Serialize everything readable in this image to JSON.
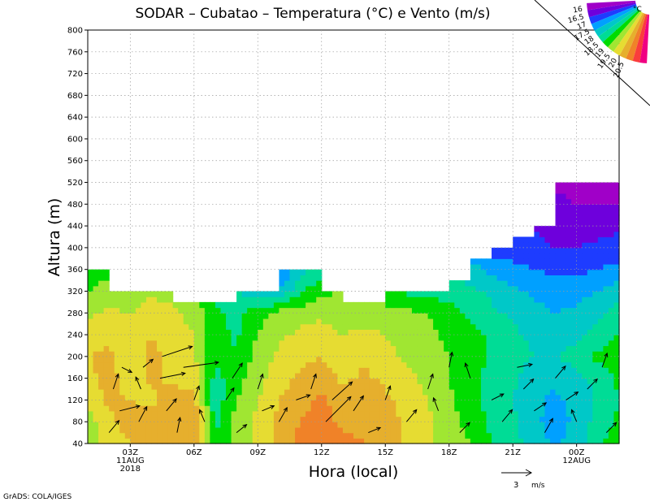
{
  "chart_data": {
    "type": "heatmap",
    "title": "SODAR  –  Cubatao  –  Temperatura (°C) e Vento (m/s)",
    "xlabel": "Hora (local)",
    "ylabel": "Altura (m)",
    "xlim": [
      0,
      25
    ],
    "ylim": [
      40,
      800
    ],
    "y_ticks": [
      40,
      80,
      120,
      160,
      200,
      240,
      280,
      320,
      360,
      400,
      440,
      480,
      520,
      560,
      600,
      640,
      680,
      720,
      760,
      800
    ],
    "x_ticks": [
      {
        "hour": 2,
        "lines": [
          "03Z",
          "11AUG",
          "2018"
        ]
      },
      {
        "hour": 5,
        "lines": [
          "06Z"
        ]
      },
      {
        "hour": 8,
        "lines": [
          "09Z"
        ]
      },
      {
        "hour": 11,
        "lines": [
          "12Z"
        ]
      },
      {
        "hour": 14,
        "lines": [
          "15Z"
        ]
      },
      {
        "hour": 17,
        "lines": [
          "18Z"
        ]
      },
      {
        "hour": 20,
        "lines": [
          "21Z"
        ]
      },
      {
        "hour": 23,
        "lines": [
          "00Z",
          "12AUG"
        ]
      }
    ],
    "grid": true,
    "legend": {
      "placement": "top-right",
      "unit": "°C",
      "levels": [
        "16",
        "16.5",
        "17",
        "17.5",
        "18",
        "18.5",
        "19",
        "19.5",
        "20",
        "20.5"
      ],
      "colors": [
        "#a000c8",
        "#6e00dc",
        "#1e3cff",
        "#00a0ff",
        "#00c8c8",
        "#00dc96",
        "#00dc00",
        "#a0e632",
        "#e6dc32",
        "#e6af2d",
        "#f08228",
        "#fa3c3c",
        "#f00082"
      ]
    },
    "data_top_by_hour": [
      360,
      320,
      320,
      320,
      300,
      300,
      300,
      320,
      320,
      360,
      360,
      320,
      300,
      300,
      320,
      320,
      320,
      340,
      380,
      400,
      420,
      440,
      520,
      520,
      520,
      480
    ],
    "temperature_grid": {
      "hours": [
        0,
        1,
        2,
        3,
        4,
        5,
        6,
        7,
        8,
        9,
        10,
        11,
        12,
        13,
        14,
        15,
        16,
        17,
        18,
        19,
        20,
        21,
        22,
        23,
        24,
        25
      ],
      "heights": [
        40,
        80,
        120,
        160,
        200,
        240,
        280,
        320,
        360,
        400,
        440,
        480,
        520
      ],
      "values": [
        [
          19.0,
          19.8,
          20.0,
          20.3,
          20.4,
          20.5,
          18.6,
          19.2,
          19.6,
          20.2,
          20.7,
          21.0,
          20.7,
          20.5,
          20.3,
          19.9,
          19.6,
          19.3,
          19.0,
          18.5,
          18.2,
          17.8,
          17.4,
          17.8,
          18.4,
          18.8
        ],
        [
          19.3,
          19.9,
          20.2,
          20.2,
          20.3,
          20.4,
          18.3,
          19.2,
          19.6,
          20.1,
          20.5,
          20.8,
          20.3,
          20.4,
          20.2,
          19.9,
          19.6,
          19.2,
          18.8,
          18.4,
          18.1,
          17.6,
          17.3,
          17.6,
          18.2,
          18.6
        ],
        [
          19.6,
          20.1,
          20.0,
          19.9,
          20.2,
          20.2,
          18.2,
          19.0,
          19.5,
          20.0,
          20.3,
          20.6,
          20.2,
          20.3,
          20.1,
          19.8,
          19.5,
          19.1,
          18.7,
          18.3,
          18.0,
          17.6,
          17.4,
          17.6,
          18.1,
          18.5
        ],
        [
          19.8,
          20.3,
          19.6,
          20.1,
          19.9,
          19.8,
          18.3,
          18.8,
          19.3,
          19.8,
          20.1,
          20.3,
          19.9,
          20.1,
          19.9,
          19.6,
          19.4,
          19.0,
          18.7,
          18.3,
          18.1,
          17.7,
          17.6,
          17.8,
          18.2,
          18.6
        ],
        [
          20.0,
          20.1,
          19.5,
          20.2,
          19.8,
          19.6,
          18.6,
          18.6,
          19.2,
          19.6,
          19.9,
          20.0,
          19.7,
          19.9,
          19.7,
          19.4,
          19.3,
          19.0,
          18.8,
          18.4,
          18.2,
          18.0,
          18.0,
          18.2,
          18.6,
          18.9
        ],
        [
          19.7,
          19.9,
          19.6,
          20.0,
          19.7,
          19.5,
          18.7,
          18.4,
          19.0,
          19.4,
          19.6,
          19.7,
          19.5,
          19.6,
          19.5,
          19.3,
          19.1,
          18.9,
          18.7,
          18.4,
          18.1,
          17.9,
          17.8,
          17.9,
          18.2,
          18.5
        ],
        [
          19.4,
          19.6,
          19.5,
          19.8,
          19.6,
          19.3,
          18.6,
          18.3,
          18.8,
          19.2,
          19.3,
          19.4,
          19.2,
          19.3,
          19.2,
          19.1,
          19.0,
          18.7,
          18.4,
          18.1,
          17.9,
          17.7,
          17.5,
          17.6,
          17.9,
          18.2
        ],
        [
          19.0,
          19.2,
          19.2,
          19.4,
          19.3,
          19.0,
          18.3,
          18.0,
          17.6,
          17.5,
          18.4,
          18.9,
          19.0,
          19.0,
          18.6,
          18.4,
          18.3,
          18.3,
          18.1,
          17.9,
          17.6,
          17.4,
          17.3,
          17.3,
          17.5,
          17.8
        ],
        [
          18.8,
          18.8,
          18.8,
          18.8,
          18.8,
          18.8,
          18.2,
          17.9,
          17.2,
          16.8,
          17.8,
          18.3,
          18.3,
          18.3,
          18.3,
          18.3,
          18.3,
          18.3,
          17.7,
          17.4,
          17.2,
          17.0,
          16.9,
          16.9,
          17.0,
          17.2
        ],
        [
          18.8,
          18.8,
          18.8,
          18.8,
          18.8,
          18.8,
          18.8,
          18.8,
          18.8,
          18.8,
          18.8,
          18.8,
          18.8,
          18.8,
          18.8,
          18.8,
          18.8,
          18.8,
          17.3,
          16.6,
          16.7,
          16.6,
          16.5,
          16.5,
          16.6,
          16.7
        ],
        [
          18.8,
          18.8,
          18.8,
          18.8,
          18.8,
          18.8,
          18.8,
          18.8,
          18.8,
          18.8,
          18.8,
          18.8,
          18.8,
          18.8,
          18.8,
          18.8,
          18.8,
          18.8,
          17.3,
          16.5,
          16.4,
          16.5,
          16.3,
          16.2,
          16.3,
          16.4
        ],
        [
          18.8,
          18.8,
          18.8,
          18.8,
          18.8,
          18.8,
          18.8,
          18.8,
          18.8,
          18.8,
          18.8,
          18.8,
          18.8,
          18.8,
          18.8,
          18.8,
          18.8,
          18.8,
          17.3,
          16.5,
          16.2,
          16.2,
          16.1,
          16.0,
          16.0,
          16.0
        ],
        [
          18.8,
          18.8,
          18.8,
          18.8,
          18.8,
          18.8,
          18.8,
          18.8,
          18.8,
          18.8,
          18.8,
          18.8,
          18.8,
          18.8,
          18.8,
          18.8,
          18.8,
          18.8,
          17.3,
          16.5,
          16.2,
          16.0,
          15.9,
          15.9,
          15.9,
          15.9
        ]
      ]
    },
    "wind_vectors": [
      {
        "hour": 1.0,
        "height": 60,
        "u": 1.0,
        "v": 1.2
      },
      {
        "hour": 1.5,
        "height": 100,
        "u": 2.0,
        "v": 0.5
      },
      {
        "hour": 1.2,
        "height": 140,
        "u": 0.5,
        "v": 1.5
      },
      {
        "hour": 1.6,
        "height": 180,
        "u": 1.0,
        "v": -0.5
      },
      {
        "hour": 2.4,
        "height": 80,
        "u": 0.8,
        "v": 1.5
      },
      {
        "hour": 2.5,
        "height": 140,
        "u": -0.5,
        "v": 1.2
      },
      {
        "hour": 2.6,
        "height": 180,
        "u": 1.0,
        "v": 0.8
      },
      {
        "hour": 3.5,
        "height": 200,
        "u": 3.0,
        "v": 1.0
      },
      {
        "hour": 3.4,
        "height": 160,
        "u": 2.5,
        "v": 0.5
      },
      {
        "hour": 3.7,
        "height": 100,
        "u": 1.0,
        "v": 1.2
      },
      {
        "hour": 4.2,
        "height": 60,
        "u": 0.3,
        "v": 1.5
      },
      {
        "hour": 4.5,
        "height": 180,
        "u": 3.5,
        "v": 0.5
      },
      {
        "hour": 5.0,
        "height": 120,
        "u": 0.5,
        "v": 1.4
      },
      {
        "hour": 5.5,
        "height": 80,
        "u": -0.5,
        "v": 1.2
      },
      {
        "hour": 6.5,
        "height": 120,
        "u": 0.8,
        "v": 1.2
      },
      {
        "hour": 6.8,
        "height": 160,
        "u": 1.0,
        "v": 1.5
      },
      {
        "hour": 7.0,
        "height": 60,
        "u": 1.0,
        "v": 0.8
      },
      {
        "hour": 8.0,
        "height": 140,
        "u": 0.5,
        "v": 1.5
      },
      {
        "hour": 8.2,
        "height": 100,
        "u": 1.2,
        "v": 0.5
      },
      {
        "hour": 9.0,
        "height": 80,
        "u": 0.8,
        "v": 1.4
      },
      {
        "hour": 9.8,
        "height": 120,
        "u": 1.4,
        "v": 0.5
      },
      {
        "hour": 10.5,
        "height": 140,
        "u": 0.5,
        "v": 1.5
      },
      {
        "hour": 11.2,
        "height": 80,
        "u": 2.5,
        "v": 2.5
      },
      {
        "hour": 11.5,
        "height": 120,
        "u": 2.0,
        "v": 1.8
      },
      {
        "hour": 12.5,
        "height": 100,
        "u": 1.0,
        "v": 1.5
      },
      {
        "hour": 13.2,
        "height": 60,
        "u": 1.2,
        "v": 0.5
      },
      {
        "hour": 14.0,
        "height": 120,
        "u": 0.5,
        "v": 1.4
      },
      {
        "hour": 15.0,
        "height": 80,
        "u": 1.0,
        "v": 1.2
      },
      {
        "hour": 16.0,
        "height": 140,
        "u": 0.5,
        "v": 1.5
      },
      {
        "hour": 16.5,
        "height": 100,
        "u": -0.5,
        "v": 1.3
      },
      {
        "hour": 17.0,
        "height": 180,
        "u": 0.3,
        "v": 1.5
      },
      {
        "hour": 17.5,
        "height": 60,
        "u": 1.0,
        "v": 1.0
      },
      {
        "hour": 18.0,
        "height": 160,
        "u": -0.5,
        "v": 1.5
      },
      {
        "hour": 19.0,
        "height": 120,
        "u": 1.2,
        "v": 0.6
      },
      {
        "hour": 19.5,
        "height": 80,
        "u": 1.0,
        "v": 1.2
      },
      {
        "hour": 20.2,
        "height": 180,
        "u": 1.5,
        "v": 0.3
      },
      {
        "hour": 20.5,
        "height": 140,
        "u": 1.0,
        "v": 1.0
      },
      {
        "hour": 21.0,
        "height": 100,
        "u": 1.2,
        "v": 0.8
      },
      {
        "hour": 21.5,
        "height": 60,
        "u": 0.8,
        "v": 1.4
      },
      {
        "hour": 22.0,
        "height": 160,
        "u": 1.0,
        "v": 1.2
      },
      {
        "hour": 22.5,
        "height": 120,
        "u": 1.2,
        "v": 0.8
      },
      {
        "hour": 23.0,
        "height": 80,
        "u": -0.5,
        "v": 1.2
      },
      {
        "hour": 23.5,
        "height": 140,
        "u": 1.0,
        "v": 1.0
      },
      {
        "hour": 24.2,
        "height": 180,
        "u": 0.5,
        "v": 1.4
      },
      {
        "hour": 24.4,
        "height": 60,
        "u": 1.0,
        "v": 1.0
      }
    ],
    "wind_reference": {
      "label": "3",
      "unit": "m/s",
      "speed": 3
    }
  },
  "footer": {
    "credit": "GrADS: COLA/IGES"
  }
}
